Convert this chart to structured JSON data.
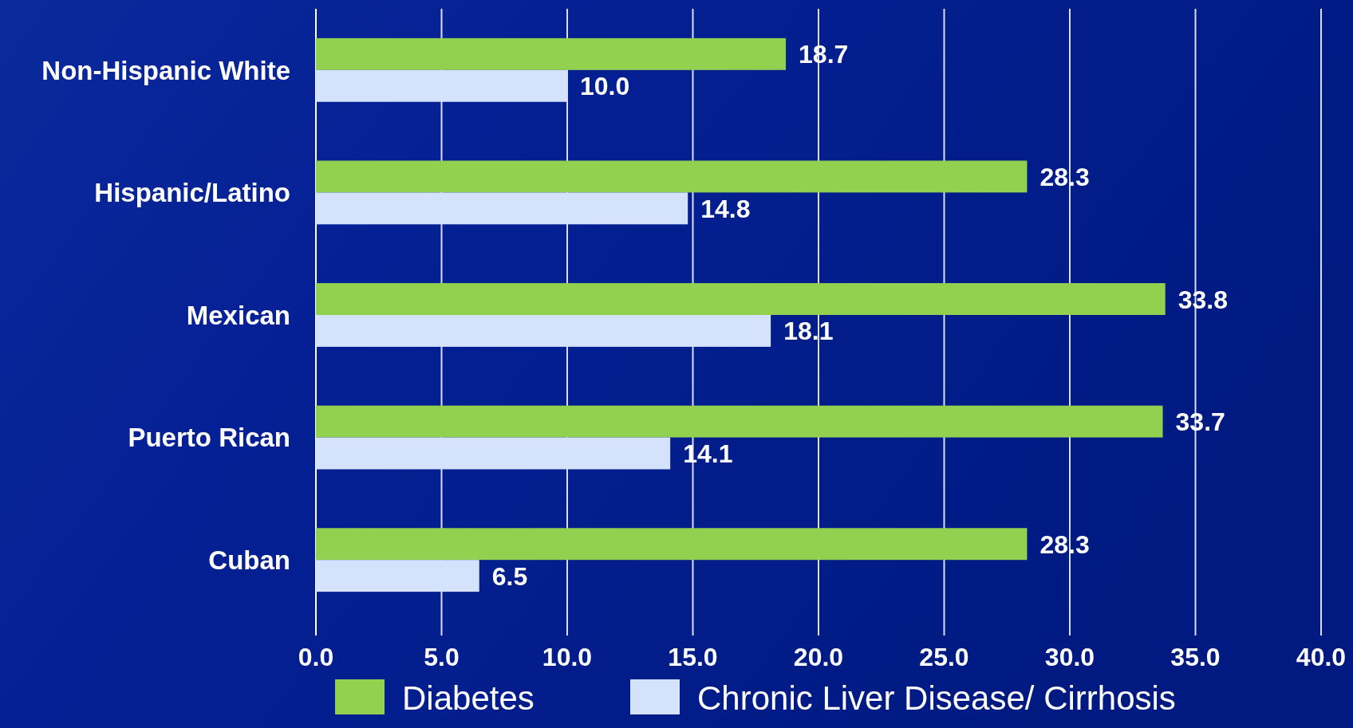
{
  "chart_data": {
    "type": "bar",
    "orientation": "horizontal",
    "categories": [
      "Non-Hispanic White",
      "Hispanic/Latino",
      "Mexican",
      "Puerto Rican",
      "Cuban"
    ],
    "series": [
      {
        "name": "Diabetes",
        "color": "#92d050",
        "values": [
          18.7,
          28.3,
          33.8,
          33.7,
          28.3
        ],
        "value_labels": [
          "18.7",
          "28.3",
          "33.8",
          "33.7",
          "28.3"
        ]
      },
      {
        "name": "Chronic Liver Disease/ Cirrhosis",
        "color": "#d5e2fb",
        "values": [
          10.0,
          14.8,
          18.1,
          14.1,
          6.5
        ],
        "value_labels": [
          "10.0",
          "14.8",
          "18.1",
          "14.1",
          "6.5"
        ]
      }
    ],
    "xlim": [
      0,
      40
    ],
    "xticks": [
      {
        "value": 0,
        "label": "0.0"
      },
      {
        "value": 5,
        "label": "5.0"
      },
      {
        "value": 10,
        "label": "10.0"
      },
      {
        "value": 15,
        "label": "15.0"
      },
      {
        "value": 20,
        "label": "20.0"
      },
      {
        "value": 25,
        "label": "25.0"
      },
      {
        "value": 30,
        "label": "30.0"
      },
      {
        "value": 35,
        "label": "35.0"
      },
      {
        "value": 40,
        "label": "40.0"
      }
    ],
    "grid": "x",
    "legend": "bottom"
  }
}
